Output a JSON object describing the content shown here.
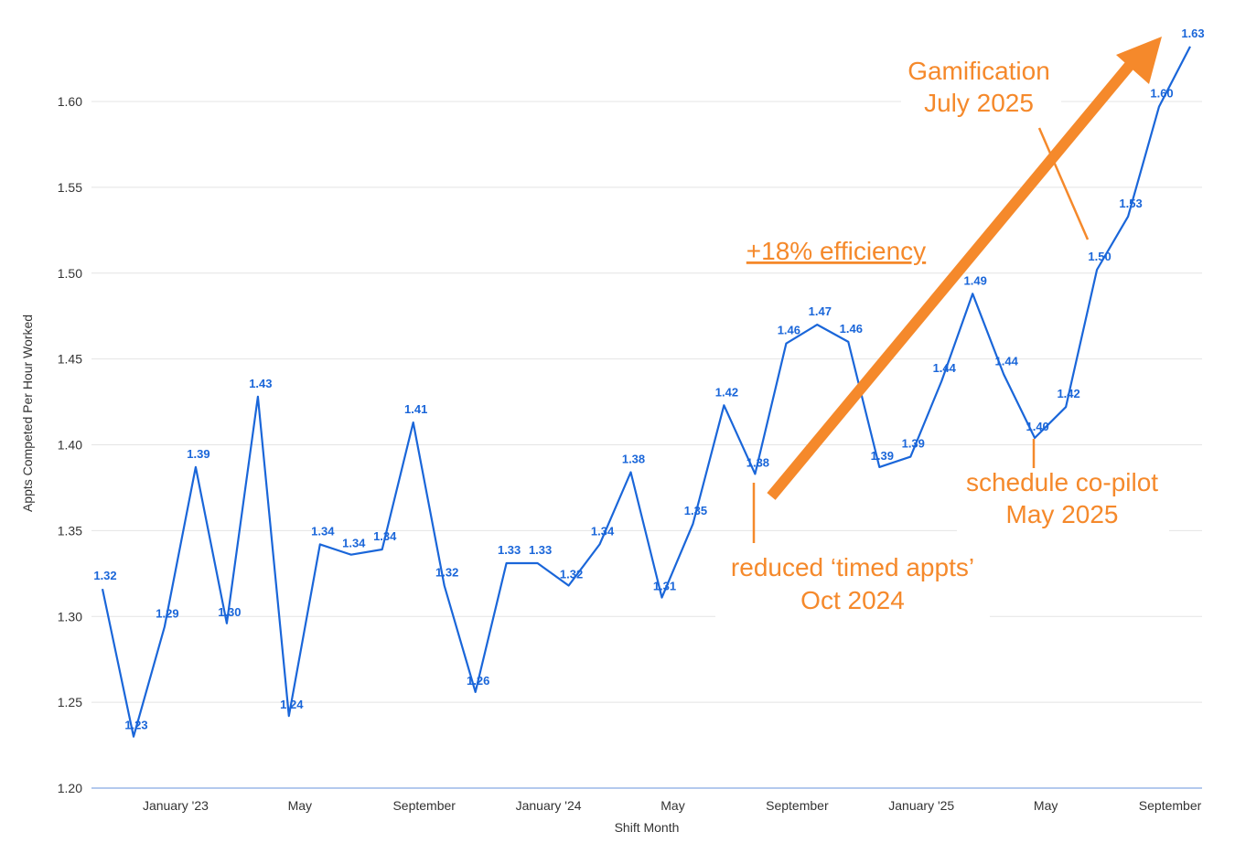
{
  "chart_data": {
    "type": "line",
    "xlabel": "Shift Month",
    "ylabel": "Appts Competed Per Hour Worked",
    "ylim": [
      1.2,
      1.63
    ],
    "yticks": [
      "1.20",
      "1.25",
      "1.30",
      "1.35",
      "1.40",
      "1.45",
      "1.50",
      "1.55",
      "1.60"
    ],
    "xticks": [
      {
        "index": 2,
        "label": "January '23"
      },
      {
        "index": 6,
        "label": "May"
      },
      {
        "index": 10,
        "label": "September"
      },
      {
        "index": 14,
        "label": "January '24"
      },
      {
        "index": 18,
        "label": "May"
      },
      {
        "index": 22,
        "label": "September"
      },
      {
        "index": 26,
        "label": "January '25"
      },
      {
        "index": 30,
        "label": "May"
      },
      {
        "index": 34,
        "label": "September"
      }
    ],
    "grid": true,
    "series": [
      {
        "color": "#1a66d9",
        "values": [
          1.316,
          1.23,
          1.294,
          1.387,
          1.296,
          1.428,
          1.242,
          1.342,
          1.336,
          1.339,
          1.413,
          1.318,
          1.256,
          1.331,
          1.331,
          1.318,
          1.342,
          1.384,
          1.311,
          1.354,
          1.423,
          1.383,
          1.459,
          1.47,
          1.46,
          1.387,
          1.393,
          1.437,
          1.488,
          1.441,
          1.404,
          1.422,
          1.502,
          1.533,
          1.597,
          1.632
        ],
        "labels": [
          "1.32",
          "1.23",
          "1.29",
          "1.39",
          "1.30",
          "1.43",
          "1.24",
          "1.34",
          "1.34",
          "1.34",
          "1.41",
          "1.32",
          "1.26",
          "1.33",
          "1.33",
          "1.32",
          "1.34",
          "1.38",
          "1.31",
          "1.35",
          "1.42",
          "1.38",
          "1.46",
          "1.47",
          "1.46",
          "1.39",
          "1.39",
          "1.44",
          "1.49",
          "1.44",
          "1.40",
          "1.42",
          "1.50",
          "1.53",
          "1.60",
          "1.63"
        ]
      }
    ]
  },
  "annotations": {
    "color": "#f5892b",
    "efficiency": "+18% efficiency",
    "gamification": [
      "Gamification",
      "July 2025"
    ],
    "copilot": [
      "schedule co-pilot",
      "May 2025"
    ],
    "timed": [
      "reduced ‘timed appts’",
      "Oct 2024"
    ]
  }
}
